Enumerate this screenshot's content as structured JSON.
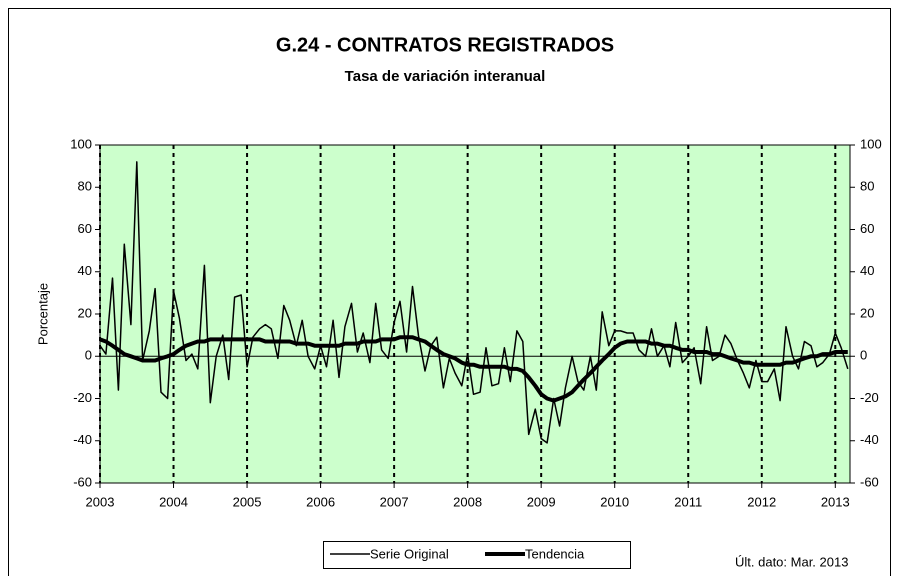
{
  "chart_data": {
    "type": "line",
    "title": "G.24 - CONTRATOS REGISTRADOS",
    "subtitle": "Tasa de variación interanual",
    "y_label": "Porcentaje",
    "note": "Últ. dato: Mar. 2013",
    "x": [
      2003,
      2003.08,
      2003.17,
      2003.25,
      2003.33,
      2003.42,
      2003.5,
      2003.58,
      2003.67,
      2003.75,
      2003.83,
      2003.92,
      2004,
      2004.08,
      2004.17,
      2004.25,
      2004.33,
      2004.42,
      2004.5,
      2004.58,
      2004.67,
      2004.75,
      2004.83,
      2004.92,
      2005,
      2005.08,
      2005.17,
      2005.25,
      2005.33,
      2005.42,
      2005.5,
      2005.58,
      2005.67,
      2005.75,
      2005.83,
      2005.92,
      2006,
      2006.08,
      2006.17,
      2006.25,
      2006.33,
      2006.42,
      2006.5,
      2006.58,
      2006.67,
      2006.75,
      2006.83,
      2006.92,
      2007,
      2007.08,
      2007.17,
      2007.25,
      2007.33,
      2007.42,
      2007.5,
      2007.58,
      2007.67,
      2007.75,
      2007.83,
      2007.92,
      2008,
      2008.08,
      2008.17,
      2008.25,
      2008.33,
      2008.42,
      2008.5,
      2008.58,
      2008.67,
      2008.75,
      2008.83,
      2008.92,
      2009,
      2009.08,
      2009.17,
      2009.25,
      2009.33,
      2009.42,
      2009.5,
      2009.58,
      2009.67,
      2009.75,
      2009.83,
      2009.92,
      2010,
      2010.08,
      2010.17,
      2010.25,
      2010.33,
      2010.42,
      2010.5,
      2010.58,
      2010.67,
      2010.75,
      2010.83,
      2010.92,
      2011,
      2011.08,
      2011.17,
      2011.25,
      2011.33,
      2011.42,
      2011.5,
      2011.58,
      2011.67,
      2011.75,
      2011.83,
      2011.92,
      2012,
      2012.08,
      2012.17,
      2012.25,
      2012.33,
      2012.42,
      2012.5,
      2012.58,
      2012.67,
      2012.75,
      2012.83,
      2012.92,
      2013,
      2013.08,
      2013.17
    ],
    "series": [
      {
        "name": "Serie Original",
        "color": "#000000",
        "width": 1.5,
        "values": [
          5,
          1,
          37,
          -16,
          53,
          15,
          92,
          -2,
          12,
          32,
          -17,
          -20,
          31,
          18,
          -2,
          1,
          -6,
          43,
          -22,
          0,
          10,
          -11,
          28,
          29,
          -5,
          9,
          13,
          15,
          13,
          -1,
          24,
          17,
          5,
          17,
          0,
          -6,
          5,
          -5,
          17,
          -10,
          14,
          25,
          2,
          11,
          -3,
          25,
          3,
          -1,
          16,
          26,
          2,
          33,
          10,
          -7,
          5,
          9,
          -15,
          -1,
          -8,
          -14,
          1,
          -18,
          -17,
          4,
          -14,
          -13,
          4,
          -12,
          12,
          7,
          -37,
          -25,
          -39,
          -41,
          -20,
          -33,
          -15,
          0,
          -12,
          -16,
          0,
          -16,
          21,
          5,
          12,
          12,
          11,
          11,
          3,
          0,
          13,
          0,
          5,
          -5,
          16,
          -3,
          0,
          4,
          -13,
          14,
          -2,
          0,
          10,
          6,
          -2,
          -8,
          -15,
          -2,
          -12,
          -12,
          -6,
          -21,
          14,
          0,
          -6,
          7,
          5,
          -5,
          -3,
          1,
          11,
          4,
          -6
        ]
      },
      {
        "name": "Tendencia",
        "color": "#000000",
        "width": 4,
        "values": [
          8,
          7,
          5,
          3,
          1,
          0,
          -1,
          -2,
          -2,
          -2,
          -1,
          0,
          1,
          3,
          5,
          6,
          7,
          7,
          8,
          8,
          8,
          8,
          8,
          8,
          8,
          8,
          8,
          7,
          7,
          7,
          7,
          7,
          6,
          6,
          6,
          5,
          5,
          5,
          5,
          5,
          6,
          6,
          6,
          7,
          7,
          7,
          8,
          8,
          8,
          9,
          9,
          9,
          8,
          7,
          5,
          3,
          1,
          0,
          -1,
          -3,
          -4,
          -4,
          -5,
          -5,
          -5,
          -5,
          -5,
          -6,
          -6,
          -7,
          -10,
          -14,
          -18,
          -20,
          -21,
          -20,
          -19,
          -17,
          -14,
          -11,
          -8,
          -5,
          -2,
          1,
          4,
          6,
          7,
          7,
          7,
          7,
          6,
          6,
          5,
          5,
          4,
          3,
          3,
          2,
          2,
          2,
          1,
          1,
          0,
          -1,
          -2,
          -3,
          -3,
          -4,
          -4,
          -4,
          -4,
          -4,
          -3,
          -3,
          -2,
          -1,
          0,
          0,
          1,
          1,
          2,
          2,
          2
        ]
      }
    ],
    "xlim": [
      2003,
      2013.2
    ],
    "xticks": [
      2003,
      2004,
      2005,
      2006,
      2007,
      2008,
      2009,
      2010,
      2011,
      2012,
      2013
    ],
    "ylim": [
      -60,
      100
    ],
    "yticks": [
      -60,
      -40,
      -20,
      0,
      20,
      40,
      60,
      80,
      100
    ],
    "y2lim": [
      -60,
      100
    ],
    "y2ticks": [
      -60,
      -40,
      -20,
      0,
      20,
      40,
      60,
      80,
      100
    ],
    "plot_background": "#ccffcc",
    "grid": "dashed-x"
  }
}
